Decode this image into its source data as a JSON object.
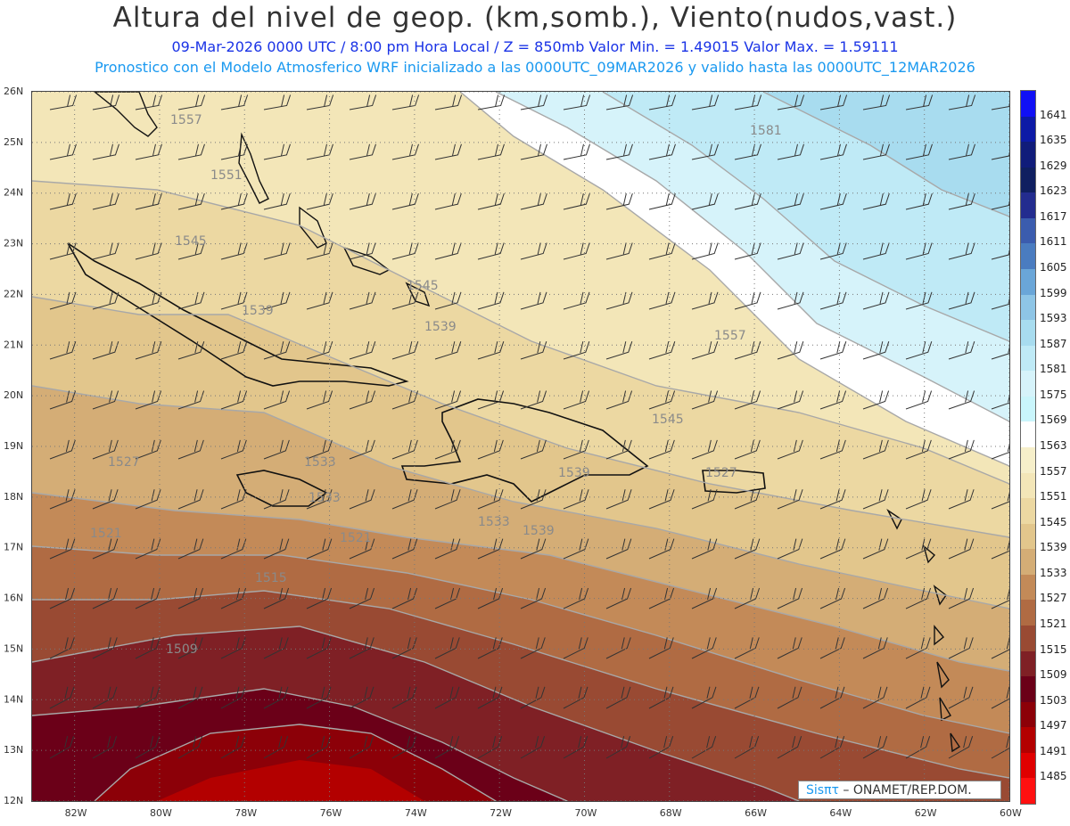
{
  "title": "Altura del nivel de geop. (km,somb.), Viento(nudos,vast.)",
  "subtitle_1": "09-Mar-2026  0000 UTC / 8:00 pm Hora Local / Z = 850mb     Valor Min. = 1.49015  Valor Max. = 1.59111",
  "subtitle_2": "Pronostico con el Modelo Atmosferico WRF inicializado a las 0000UTC_09MAR2026 y valido hasta las  0000UTC_12MAR2026",
  "watermark": {
    "brand": "Sisπτ",
    "org": " – ONAMET/REP.DOM."
  },
  "map": {
    "lon_range": [
      -83,
      -60
    ],
    "lat_range": [
      12,
      26
    ],
    "lon_ticks": [
      "82W",
      "80W",
      "78W",
      "76W",
      "74W",
      "72W",
      "70W",
      "68W",
      "66W",
      "64W",
      "62W",
      "60W"
    ],
    "lat_ticks": [
      "12N",
      "13N",
      "14N",
      "15N",
      "16N",
      "17N",
      "18N",
      "19N",
      "20N",
      "21N",
      "22N",
      "23N",
      "24N",
      "25N",
      "26N"
    ],
    "contour_labels": [
      "1557",
      "1551",
      "1545",
      "1539",
      "1533",
      "1527",
      "1521",
      "1515",
      "1509",
      "1581",
      "1545",
      "1539",
      "1557",
      "1545",
      "1539",
      "1533",
      "1527",
      "1521",
      "1533",
      "1539"
    ],
    "grid": "dotted",
    "wind_barbs": true
  },
  "colorbar": {
    "levels": [
      "1641",
      "1635",
      "1629",
      "1623",
      "1617",
      "1611",
      "1605",
      "1599",
      "1593",
      "1587",
      "1581",
      "1575",
      "1569",
      "1563",
      "1557",
      "1551",
      "1545",
      "1539",
      "1533",
      "1527",
      "1521",
      "1515",
      "1509",
      "1503",
      "1497",
      "1491",
      "1485"
    ],
    "colors": [
      "#1010f5",
      "#0c1aa6",
      "#101c7a",
      "#0f1f60",
      "#232c8f",
      "#3b5cae",
      "#4a7cc0",
      "#6aa6d8",
      "#8ec5e6",
      "#a8dcef",
      "#bfeaf6",
      "#d6f3fa",
      "#c9f5fb",
      "#ffffff",
      "#f6efca",
      "#f3e6b8",
      "#ecd8a2",
      "#e2c68c",
      "#d4ad76",
      "#c38a58",
      "#b06b43",
      "#994a33",
      "#7f2025",
      "#6b0018",
      "#8c0008",
      "#b30000",
      "#e00000",
      "#ff1010"
    ]
  }
}
